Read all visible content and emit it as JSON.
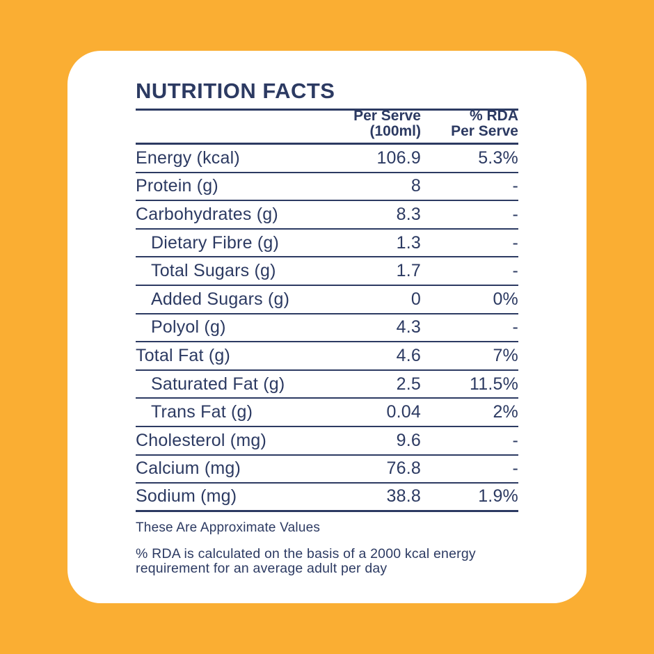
{
  "colors": {
    "background": "#FAAE33",
    "card": "#FFFFFF",
    "text": "#2C3A62"
  },
  "title": "NUTRITION FACTS",
  "table": {
    "header": {
      "per_serve_line1": "Per Serve",
      "per_serve_line2": "(100ml)",
      "rda_line1": "% RDA",
      "rda_line2": "Per Serve"
    },
    "rows": [
      {
        "label": "Energy (kcal)",
        "indent": false,
        "per_serve": "106.9",
        "rda": "5.3%"
      },
      {
        "label": "Protein (g)",
        "indent": false,
        "per_serve": "8",
        "rda": "-"
      },
      {
        "label": "Carbohydrates (g)",
        "indent": false,
        "per_serve": "8.3",
        "rda": "-"
      },
      {
        "label": "Dietary Fibre (g)",
        "indent": true,
        "per_serve": "1.3",
        "rda": "-"
      },
      {
        "label": "Total Sugars (g)",
        "indent": true,
        "per_serve": "1.7",
        "rda": "-"
      },
      {
        "label": "Added Sugars (g)",
        "indent": true,
        "per_serve": "0",
        "rda": "0%"
      },
      {
        "label": "Polyol (g)",
        "indent": true,
        "per_serve": "4.3",
        "rda": "-"
      },
      {
        "label": "Total Fat (g)",
        "indent": false,
        "per_serve": "4.6",
        "rda": "7%"
      },
      {
        "label": "Saturated Fat (g)",
        "indent": true,
        "per_serve": "2.5",
        "rda": "11.5%"
      },
      {
        "label": "Trans Fat (g)",
        "indent": true,
        "per_serve": "0.04",
        "rda": "2%"
      },
      {
        "label": "Cholesterol (mg)",
        "indent": false,
        "per_serve": "9.6",
        "rda": "-"
      },
      {
        "label": "Calcium (mg)",
        "indent": false,
        "per_serve": "76.8",
        "rda": "-"
      },
      {
        "label": "Sodium (mg)",
        "indent": false,
        "per_serve": "38.8",
        "rda": "1.9%"
      }
    ]
  },
  "footnotes": {
    "approximate": "These Are Approximate Values",
    "rda_note": "% RDA is calculated on the basis of a 2000 kcal energy requirement for an average adult per day"
  }
}
